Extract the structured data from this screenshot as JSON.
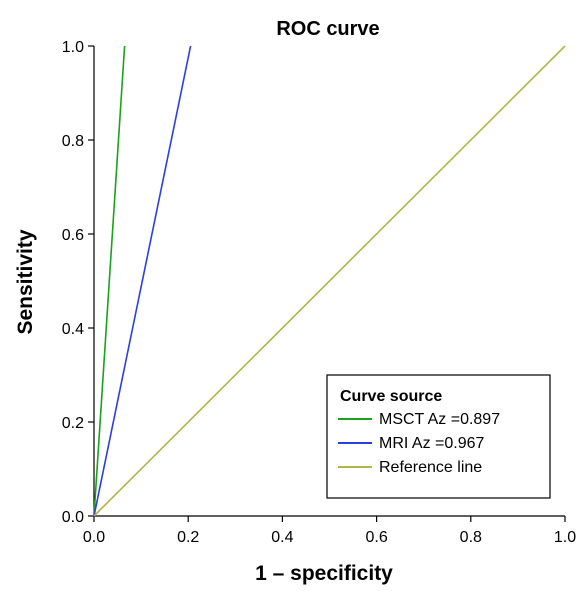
{
  "chart_data": {
    "type": "line",
    "title": "ROC curve",
    "xlabel": "1 – specificity",
    "ylabel": "Sensitivity",
    "xlim": [
      0,
      1
    ],
    "ylim": [
      0,
      1
    ],
    "x_ticks": [
      0,
      0.2,
      0.4,
      0.6,
      0.8,
      1
    ],
    "x_tick_labels": [
      "0.0",
      "0.2",
      "0.4",
      "0.6",
      "0.8",
      "1.0"
    ],
    "y_ticks": [
      0,
      0.2,
      0.4,
      0.6,
      0.8,
      1
    ],
    "y_tick_labels": [
      "0.0",
      "0.2",
      "0.4",
      "0.6",
      "0.8",
      "1.0"
    ],
    "grid": false,
    "legend": {
      "title": "Curve source",
      "placement": "bottom-right"
    },
    "series": [
      {
        "name": "MSCT Az =0.897",
        "color": "#1aa31a",
        "points": [
          [
            0,
            0
          ],
          [
            0.065,
            1
          ]
        ]
      },
      {
        "name": "MRI Az =0.967",
        "color": "#2b3fe0",
        "points": [
          [
            0,
            0
          ],
          [
            0.205,
            1
          ]
        ]
      },
      {
        "name": "Reference line",
        "color": "#b3b34a",
        "points": [
          [
            0,
            0
          ],
          [
            1,
            1
          ]
        ]
      }
    ]
  }
}
